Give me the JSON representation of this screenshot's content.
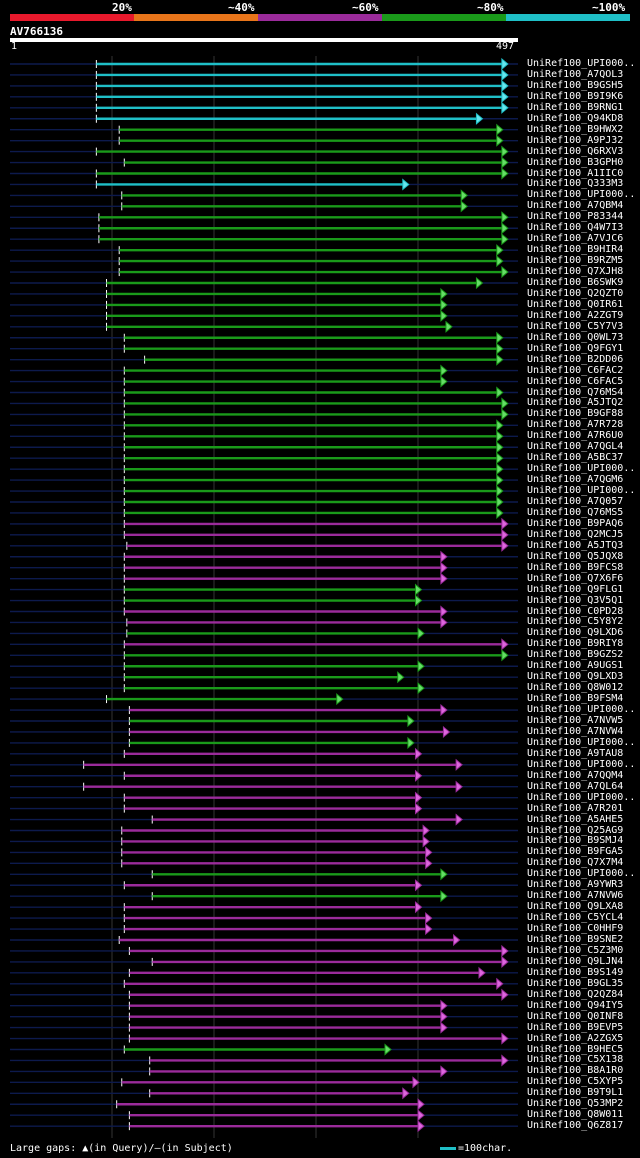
{
  "legend": {
    "colors": [
      "#e8192c",
      "#e8751a",
      "#9b2b9b",
      "#1a9a1a",
      "#1fbfc7"
    ],
    "labels": [
      "20%",
      "~40%",
      "~60%",
      "~80%",
      "~100%"
    ]
  },
  "query": {
    "id": "AV766136",
    "start": "1",
    "end": "497"
  },
  "footer": {
    "gaps_text": "Large gaps: ▲(in Query)/—(in Subject)",
    "scale_text": "=100char."
  },
  "hits": [
    {
      "label": "UniRef100_UPI000..",
      "start": 0.17,
      "end": 0.98,
      "color": "cyan"
    },
    {
      "label": "UniRef100_A7QOL3",
      "start": 0.17,
      "end": 0.98,
      "color": "cyan"
    },
    {
      "label": "UniRef100_B9GSH5",
      "start": 0.17,
      "end": 0.98,
      "color": "cyan"
    },
    {
      "label": "UniRef100_B9I9K6",
      "start": 0.17,
      "end": 0.98,
      "color": "cyan"
    },
    {
      "label": "UniRef100_B9RNG1",
      "start": 0.17,
      "end": 0.98,
      "color": "cyan"
    },
    {
      "label": "UniRef100_Q94KD8",
      "start": 0.17,
      "end": 0.93,
      "color": "cyan"
    },
    {
      "label": "UniRef100_B9HWX2",
      "start": 0.215,
      "end": 0.97,
      "color": "green"
    },
    {
      "label": "UniRef100_A9PJ32",
      "start": 0.215,
      "end": 0.97,
      "color": "green"
    },
    {
      "label": "UniRef100_Q6RXV3",
      "start": 0.17,
      "end": 0.98,
      "color": "green"
    },
    {
      "label": "UniRef100_B3GPH0",
      "start": 0.225,
      "end": 0.98,
      "color": "green"
    },
    {
      "label": "UniRef100_A1IIC0",
      "start": 0.17,
      "end": 0.98,
      "color": "green"
    },
    {
      "label": "UniRef100_Q333M3",
      "start": 0.17,
      "end": 0.785,
      "color": "cyan"
    },
    {
      "label": "UniRef100_UPI000..",
      "start": 0.22,
      "end": 0.9,
      "color": "green"
    },
    {
      "label": "UniRef100_A7QBM4",
      "start": 0.22,
      "end": 0.9,
      "color": "green"
    },
    {
      "label": "UniRef100_P83344",
      "start": 0.175,
      "end": 0.98,
      "color": "green"
    },
    {
      "label": "UniRef100_Q4W7I3",
      "start": 0.175,
      "end": 0.98,
      "color": "green"
    },
    {
      "label": "UniRef100_A7VJC6",
      "start": 0.175,
      "end": 0.98,
      "color": "green"
    },
    {
      "label": "UniRef100_B9HIR4",
      "start": 0.215,
      "end": 0.97,
      "color": "green"
    },
    {
      "label": "UniRef100_B9RZM5",
      "start": 0.215,
      "end": 0.97,
      "color": "green"
    },
    {
      "label": "UniRef100_Q7XJH8",
      "start": 0.215,
      "end": 0.98,
      "color": "green"
    },
    {
      "label": "UniRef100_B6SWK9",
      "start": 0.19,
      "end": 0.93,
      "color": "green"
    },
    {
      "label": "UniRef100_Q2QZT0",
      "start": 0.19,
      "end": 0.86,
      "color": "green"
    },
    {
      "label": "UniRef100_Q0IR61",
      "start": 0.19,
      "end": 0.86,
      "color": "green"
    },
    {
      "label": "UniRef100_A2ZGT9",
      "start": 0.19,
      "end": 0.86,
      "color": "green"
    },
    {
      "label": "UniRef100_C5Y7V3",
      "start": 0.19,
      "end": 0.87,
      "color": "green"
    },
    {
      "label": "UniRef100_Q0WL73",
      "start": 0.225,
      "end": 0.97,
      "color": "green"
    },
    {
      "label": "UniRef100_Q9FGY1",
      "start": 0.225,
      "end": 0.97,
      "color": "green"
    },
    {
      "label": "UniRef100_B2DD06",
      "start": 0.265,
      "end": 0.97,
      "color": "green"
    },
    {
      "label": "UniRef100_C6FAC2",
      "start": 0.225,
      "end": 0.86,
      "color": "green"
    },
    {
      "label": "UniRef100_C6FAC5",
      "start": 0.225,
      "end": 0.86,
      "color": "green"
    },
    {
      "label": "UniRef100_Q76MS4",
      "start": 0.225,
      "end": 0.97,
      "color": "green"
    },
    {
      "label": "UniRef100_A5JTQ2",
      "start": 0.225,
      "end": 0.98,
      "color": "green"
    },
    {
      "label": "UniRef100_B9GF88",
      "start": 0.225,
      "end": 0.98,
      "color": "green"
    },
    {
      "label": "UniRef100_A7R728",
      "start": 0.225,
      "end": 0.97,
      "color": "green"
    },
    {
      "label": "UniRef100_A7R6U0",
      "start": 0.225,
      "end": 0.97,
      "color": "green"
    },
    {
      "label": "UniRef100_A7QGL4",
      "start": 0.225,
      "end": 0.97,
      "color": "green"
    },
    {
      "label": "UniRef100_A5BC37",
      "start": 0.225,
      "end": 0.97,
      "color": "green"
    },
    {
      "label": "UniRef100_UPI000..",
      "start": 0.225,
      "end": 0.97,
      "color": "green"
    },
    {
      "label": "UniRef100_A7QGM6",
      "start": 0.225,
      "end": 0.97,
      "color": "green"
    },
    {
      "label": "UniRef100_UPI000..",
      "start": 0.225,
      "end": 0.97,
      "color": "green"
    },
    {
      "label": "UniRef100_A7Q057",
      "start": 0.225,
      "end": 0.97,
      "color": "green"
    },
    {
      "label": "UniRef100_Q76MS5",
      "start": 0.225,
      "end": 0.97,
      "color": "green"
    },
    {
      "label": "UniRef100_B9PAQ6",
      "start": 0.225,
      "end": 0.98,
      "color": "magenta"
    },
    {
      "label": "UniRef100_Q2MCJ5",
      "start": 0.225,
      "end": 0.98,
      "color": "magenta"
    },
    {
      "label": "UniRef100_A5JTQ3",
      "start": 0.23,
      "end": 0.98,
      "color": "magenta"
    },
    {
      "label": "UniRef100_Q5JQX8",
      "start": 0.225,
      "end": 0.86,
      "color": "magenta"
    },
    {
      "label": "UniRef100_B9FCS8",
      "start": 0.225,
      "end": 0.86,
      "color": "magenta"
    },
    {
      "label": "UniRef100_Q7X6F6",
      "start": 0.225,
      "end": 0.86,
      "color": "magenta"
    },
    {
      "label": "UniRef100_Q9FLG1",
      "start": 0.225,
      "end": 0.81,
      "color": "green"
    },
    {
      "label": "UniRef100_Q3V5Q1",
      "start": 0.225,
      "end": 0.81,
      "color": "green"
    },
    {
      "label": "UniRef100_C0PD28",
      "start": 0.225,
      "end": 0.86,
      "color": "magenta"
    },
    {
      "label": "UniRef100_C5Y8Y2",
      "start": 0.23,
      "end": 0.86,
      "color": "magenta"
    },
    {
      "label": "UniRef100_Q9LXD6",
      "start": 0.23,
      "end": 0.815,
      "color": "green"
    },
    {
      "label": "UniRef100_B9RIY8",
      "start": 0.225,
      "end": 0.98,
      "color": "magenta"
    },
    {
      "label": "UniRef100_B9GZS2",
      "start": 0.225,
      "end": 0.98,
      "color": "green"
    },
    {
      "label": "UniRef100_A9UGS1",
      "start": 0.225,
      "end": 0.815,
      "color": "green"
    },
    {
      "label": "UniRef100_Q9LXD3",
      "start": 0.225,
      "end": 0.775,
      "color": "green"
    },
    {
      "label": "UniRef100_Q8W012",
      "start": 0.225,
      "end": 0.815,
      "color": "green"
    },
    {
      "label": "UniRef100_B9FSM4",
      "start": 0.19,
      "end": 0.655,
      "color": "green"
    },
    {
      "label": "UniRef100_UPI000..",
      "start": 0.235,
      "end": 0.86,
      "color": "magenta"
    },
    {
      "label": "UniRef100_A7NVW5",
      "start": 0.235,
      "end": 0.795,
      "color": "green"
    },
    {
      "label": "UniRef100_A7NVW4",
      "start": 0.235,
      "end": 0.865,
      "color": "magenta"
    },
    {
      "label": "UniRef100_UPI000..",
      "start": 0.235,
      "end": 0.795,
      "color": "green"
    },
    {
      "label": "UniRef100_A9TAU8",
      "start": 0.225,
      "end": 0.81,
      "color": "magenta"
    },
    {
      "label": "UniRef100_UPI000..",
      "start": 0.145,
      "end": 0.89,
      "color": "magenta"
    },
    {
      "label": "UniRef100_A7QQM4",
      "start": 0.225,
      "end": 0.81,
      "color": "magenta"
    },
    {
      "label": "UniRef100_A7QL64",
      "start": 0.145,
      "end": 0.89,
      "color": "magenta"
    },
    {
      "label": "UniRef100_UPI000..",
      "start": 0.225,
      "end": 0.81,
      "color": "magenta"
    },
    {
      "label": "UniRef100_A7R201",
      "start": 0.225,
      "end": 0.81,
      "color": "magenta"
    },
    {
      "label": "UniRef100_A5AHE5",
      "start": 0.28,
      "end": 0.89,
      "color": "magenta"
    },
    {
      "label": "UniRef100_Q25AG9",
      "start": 0.22,
      "end": 0.825,
      "color": "magenta"
    },
    {
      "label": "UniRef100_B9SMJ4",
      "start": 0.22,
      "end": 0.825,
      "color": "magenta"
    },
    {
      "label": "UniRef100_B9FGA5",
      "start": 0.22,
      "end": 0.83,
      "color": "magenta"
    },
    {
      "label": "UniRef100_Q7X7M4",
      "start": 0.22,
      "end": 0.83,
      "color": "magenta"
    },
    {
      "label": "UniRef100_UPI000..",
      "start": 0.28,
      "end": 0.86,
      "color": "green"
    },
    {
      "label": "UniRef100_A9YWR3",
      "start": 0.225,
      "end": 0.81,
      "color": "magenta"
    },
    {
      "label": "UniRef100_A7NVW6",
      "start": 0.28,
      "end": 0.86,
      "color": "green"
    },
    {
      "label": "UniRef100_Q9LXA8",
      "start": 0.225,
      "end": 0.81,
      "color": "magenta"
    },
    {
      "label": "UniRef100_C5YCL4",
      "start": 0.225,
      "end": 0.83,
      "color": "magenta"
    },
    {
      "label": "UniRef100_C0HHF9",
      "start": 0.225,
      "end": 0.83,
      "color": "magenta"
    },
    {
      "label": "UniRef100_B9SNE2",
      "start": 0.215,
      "end": 0.885,
      "color": "magenta"
    },
    {
      "label": "UniRef100_C5Z3M0",
      "start": 0.235,
      "end": 0.98,
      "color": "magenta"
    },
    {
      "label": "UniRef100_Q9LJN4",
      "start": 0.28,
      "end": 0.98,
      "color": "magenta"
    },
    {
      "label": "UniRef100_B9S149",
      "start": 0.235,
      "end": 0.935,
      "color": "magenta"
    },
    {
      "label": "UniRef100_B9GL35",
      "start": 0.225,
      "end": 0.97,
      "color": "magenta"
    },
    {
      "label": "UniRef100_Q2QZ84",
      "start": 0.235,
      "end": 0.98,
      "color": "magenta"
    },
    {
      "label": "UniRef100_Q94IY5",
      "start": 0.235,
      "end": 0.86,
      "color": "magenta"
    },
    {
      "label": "UniRef100_Q0INF8",
      "start": 0.235,
      "end": 0.86,
      "color": "magenta"
    },
    {
      "label": "UniRef100_B9EVP5",
      "start": 0.235,
      "end": 0.86,
      "color": "magenta"
    },
    {
      "label": "UniRef100_A2ZGX5",
      "start": 0.235,
      "end": 0.98,
      "color": "magenta"
    },
    {
      "label": "UniRef100_B9HEC5",
      "start": 0.225,
      "end": 0.75,
      "color": "green"
    },
    {
      "label": "UniRef100_C5X138",
      "start": 0.275,
      "end": 0.98,
      "color": "magenta"
    },
    {
      "label": "UniRef100_B8A1R0",
      "start": 0.275,
      "end": 0.86,
      "color": "magenta"
    },
    {
      "label": "UniRef100_C5XYP5",
      "start": 0.22,
      "end": 0.805,
      "color": "magenta"
    },
    {
      "label": "UniRef100_B9T9L1",
      "start": 0.275,
      "end": 0.785,
      "color": "magenta"
    },
    {
      "label": "UniRef100_Q53MP2",
      "start": 0.21,
      "end": 0.815,
      "color": "magenta"
    },
    {
      "label": "UniRef100_Q8W011",
      "start": 0.235,
      "end": 0.815,
      "color": "magenta"
    },
    {
      "label": "UniRef100_Q6Z817",
      "start": 0.235,
      "end": 0.815,
      "color": "magenta"
    }
  ]
}
